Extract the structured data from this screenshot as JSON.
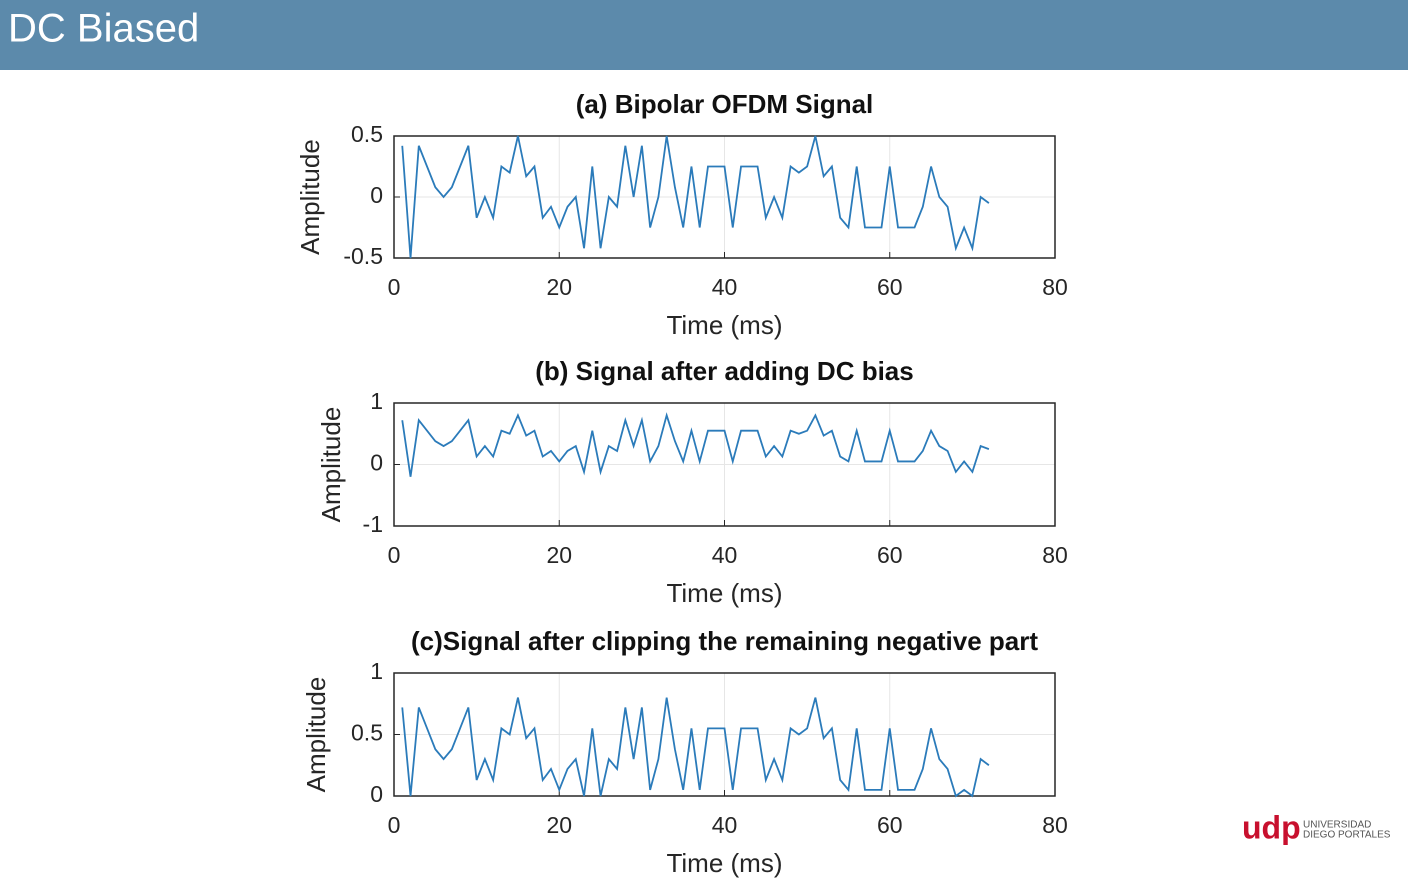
{
  "header": {
    "title": "DC Biased"
  },
  "logo": {
    "mark": "udp",
    "line1": "UNIVERSIDAD",
    "line2": "DIEGO PORTALES"
  },
  "chart_data": [
    {
      "type": "line",
      "title": "(a) Bipolar OFDM Signal",
      "x_label": "Time (ms)",
      "y_label": "Amplitude",
      "color": "#2b7bba",
      "grid": true,
      "x": [
        1,
        2,
        3,
        4,
        5,
        6,
        7,
        8,
        9,
        10,
        11,
        12,
        13,
        14,
        15,
        16,
        17,
        18,
        19,
        20,
        21,
        22,
        23,
        24,
        25,
        26,
        27,
        28,
        29,
        30,
        31,
        32,
        33,
        34,
        35,
        36,
        37,
        38,
        39,
        40,
        41,
        42,
        43,
        44,
        45,
        46,
        47,
        48,
        49,
        50,
        51,
        52,
        53,
        54,
        55,
        56,
        57,
        58,
        59,
        60,
        61,
        62,
        63,
        64,
        65,
        66,
        67,
        68,
        69,
        70,
        71,
        72
      ],
      "values": [
        0.42,
        -0.5,
        0.42,
        0.25,
        0.08,
        0.0,
        0.08,
        0.25,
        0.42,
        -0.17,
        0.0,
        -0.17,
        0.25,
        0.2,
        0.5,
        0.17,
        0.25,
        -0.17,
        -0.08,
        -0.25,
        -0.08,
        0.0,
        -0.42,
        0.25,
        -0.42,
        0.0,
        -0.08,
        0.42,
        0.0,
        0.42,
        -0.25,
        0.0,
        0.5,
        0.08,
        -0.25,
        0.25,
        -0.25,
        0.25,
        0.25,
        0.25,
        -0.25,
        0.25,
        0.25,
        0.25,
        -0.17,
        0.0,
        -0.17,
        0.25,
        0.2,
        0.25,
        0.5,
        0.17,
        0.25,
        -0.17,
        -0.25,
        0.25,
        -0.25,
        -0.25,
        -0.25,
        0.25,
        -0.25,
        -0.25,
        -0.25,
        -0.08,
        0.25,
        0.0,
        -0.08,
        -0.42,
        -0.25,
        -0.42,
        0.0,
        -0.05
      ],
      "xlim": [
        0,
        80
      ],
      "xticks": [
        0,
        20,
        40,
        60,
        80
      ],
      "ylim": [
        -0.5,
        0.5
      ],
      "yticks": [
        -0.5,
        0,
        0.5
      ]
    },
    {
      "type": "line",
      "title": "(b) Signal after adding  DC bias",
      "x_label": "Time (ms)",
      "y_label": "Amplitude",
      "color": "#2b7bba",
      "grid": true,
      "x": [
        1,
        2,
        3,
        4,
        5,
        6,
        7,
        8,
        9,
        10,
        11,
        12,
        13,
        14,
        15,
        16,
        17,
        18,
        19,
        20,
        21,
        22,
        23,
        24,
        25,
        26,
        27,
        28,
        29,
        30,
        31,
        32,
        33,
        34,
        35,
        36,
        37,
        38,
        39,
        40,
        41,
        42,
        43,
        44,
        45,
        46,
        47,
        48,
        49,
        50,
        51,
        52,
        53,
        54,
        55,
        56,
        57,
        58,
        59,
        60,
        61,
        62,
        63,
        64,
        65,
        66,
        67,
        68,
        69,
        70,
        71,
        72
      ],
      "values": [
        0.72,
        -0.2,
        0.72,
        0.55,
        0.38,
        0.3,
        0.38,
        0.55,
        0.72,
        0.13,
        0.3,
        0.13,
        0.55,
        0.5,
        0.8,
        0.47,
        0.55,
        0.13,
        0.22,
        0.05,
        0.22,
        0.3,
        -0.12,
        0.55,
        -0.12,
        0.3,
        0.22,
        0.72,
        0.3,
        0.72,
        0.05,
        0.3,
        0.8,
        0.38,
        0.05,
        0.55,
        0.05,
        0.55,
        0.55,
        0.55,
        0.05,
        0.55,
        0.55,
        0.55,
        0.13,
        0.3,
        0.13,
        0.55,
        0.5,
        0.55,
        0.8,
        0.47,
        0.55,
        0.13,
        0.05,
        0.55,
        0.05,
        0.05,
        0.05,
        0.55,
        0.05,
        0.05,
        0.05,
        0.22,
        0.55,
        0.3,
        0.22,
        -0.12,
        0.05,
        -0.12,
        0.3,
        0.25
      ],
      "xlim": [
        0,
        80
      ],
      "xticks": [
        0,
        20,
        40,
        60,
        80
      ],
      "ylim": [
        -1,
        1
      ],
      "yticks": [
        -1,
        0,
        1
      ]
    },
    {
      "type": "line",
      "title": "(c)Signal after clipping the remaining negative part",
      "x_label": "Time (ms)",
      "y_label": "Amplitude",
      "color": "#2b7bba",
      "grid": true,
      "x": [
        1,
        2,
        3,
        4,
        5,
        6,
        7,
        8,
        9,
        10,
        11,
        12,
        13,
        14,
        15,
        16,
        17,
        18,
        19,
        20,
        21,
        22,
        23,
        24,
        25,
        26,
        27,
        28,
        29,
        30,
        31,
        32,
        33,
        34,
        35,
        36,
        37,
        38,
        39,
        40,
        41,
        42,
        43,
        44,
        45,
        46,
        47,
        48,
        49,
        50,
        51,
        52,
        53,
        54,
        55,
        56,
        57,
        58,
        59,
        60,
        61,
        62,
        63,
        64,
        65,
        66,
        67,
        68,
        69,
        70,
        71,
        72
      ],
      "values": [
        0.72,
        0,
        0.72,
        0.55,
        0.38,
        0.3,
        0.38,
        0.55,
        0.72,
        0.13,
        0.3,
        0.13,
        0.55,
        0.5,
        0.8,
        0.47,
        0.55,
        0.13,
        0.22,
        0.05,
        0.22,
        0.3,
        0,
        0.55,
        0,
        0.3,
        0.22,
        0.72,
        0.3,
        0.72,
        0.05,
        0.3,
        0.8,
        0.38,
        0.05,
        0.55,
        0.05,
        0.55,
        0.55,
        0.55,
        0.05,
        0.55,
        0.55,
        0.55,
        0.13,
        0.3,
        0.13,
        0.55,
        0.5,
        0.55,
        0.8,
        0.47,
        0.55,
        0.13,
        0.05,
        0.55,
        0.05,
        0.05,
        0.05,
        0.55,
        0.05,
        0.05,
        0.05,
        0.22,
        0.55,
        0.3,
        0.22,
        0,
        0.05,
        0,
        0.3,
        0.25
      ],
      "xlim": [
        0,
        80
      ],
      "xticks": [
        0,
        20,
        40,
        60,
        80
      ],
      "ylim": [
        0,
        1
      ],
      "yticks": [
        0,
        0.5,
        1
      ]
    }
  ]
}
